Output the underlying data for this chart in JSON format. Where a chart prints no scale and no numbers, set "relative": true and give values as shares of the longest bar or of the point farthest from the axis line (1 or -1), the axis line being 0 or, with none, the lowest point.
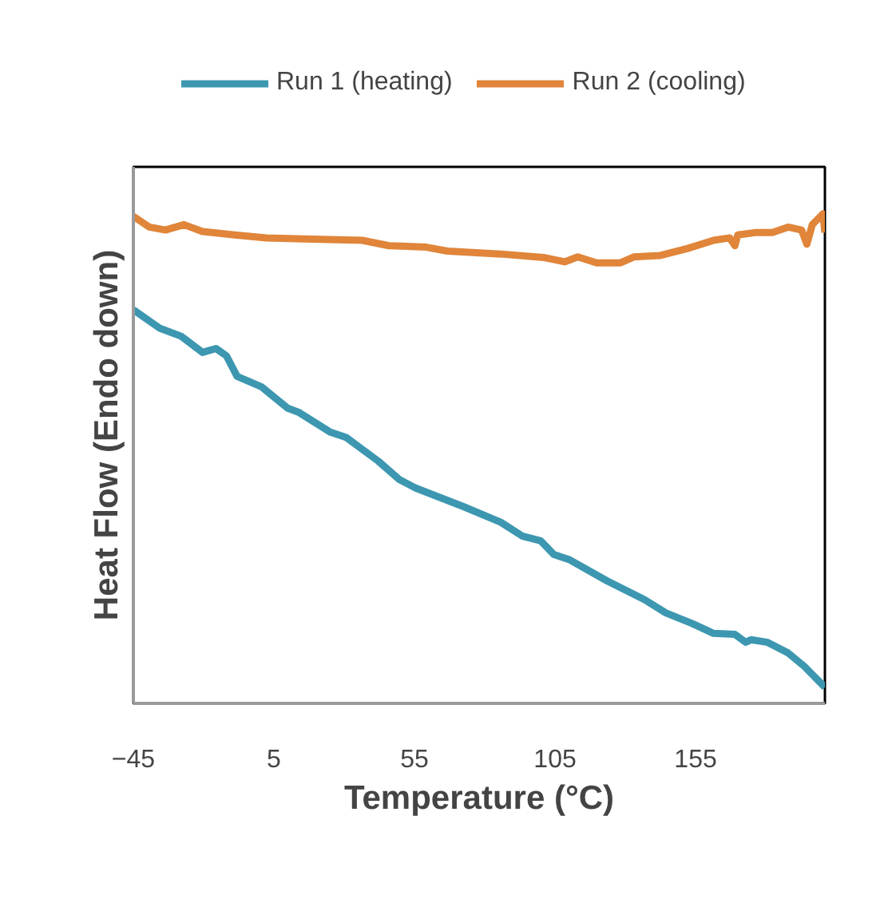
{
  "chart_data": {
    "type": "line",
    "relative": true,
    "xlabel": "Temperature (°C)",
    "ylabel": "Heat Flow (Endo down)",
    "xlim": [
      -45,
      201
    ],
    "xticks": [
      -45,
      5,
      55,
      105,
      155
    ],
    "grid": false,
    "legend": "top",
    "line_style": "solid",
    "marker": "none",
    "series": [
      {
        "name": "Run 1 (heating)",
        "color": "#3d97b0",
        "x": [
          -45,
          -35.5,
          -28.0,
          -20.4,
          -15.6,
          -11.9,
          -8.1,
          0.5,
          9.9,
          13.7,
          25.1,
          30.8,
          42.1,
          49.7,
          55.4,
          72.4,
          85.7,
          93.3,
          99.9,
          104.6,
          110.3,
          123.6,
          136.8,
          144.4,
          153.9,
          161.4,
          169.0,
          172.8,
          174.7,
          180.4,
          187.9,
          193.6,
          201
        ],
        "values": [
          0.804,
          0.766,
          0.75,
          0.717,
          0.725,
          0.71,
          0.668,
          0.647,
          0.603,
          0.595,
          0.554,
          0.543,
          0.495,
          0.457,
          0.44,
          0.402,
          0.37,
          0.342,
          0.332,
          0.304,
          0.293,
          0.25,
          0.212,
          0.185,
          0.163,
          0.143,
          0.141,
          0.125,
          0.13,
          0.125,
          0.103,
          0.076,
          0.033
        ]
      },
      {
        "name": "Run 2 (cooling)",
        "color": "#e0853a",
        "x": [
          -45,
          -39.3,
          -33.6,
          -27.0,
          -20.4,
          -9.0,
          2.3,
          15.6,
          36.4,
          45.9,
          59.2,
          66.7,
          85.7,
          100.8,
          108.4,
          113.1,
          119.8,
          128.3,
          133.0,
          142.5,
          152.0,
          161.4,
          167.1,
          169.0,
          170.0,
          176.6,
          182.3,
          187.9,
          192.7,
          194.6,
          196.5,
          200.3,
          201
        ],
        "values": [
          0.995,
          0.973,
          0.967,
          0.978,
          0.964,
          0.957,
          0.951,
          0.949,
          0.946,
          0.935,
          0.932,
          0.924,
          0.918,
          0.911,
          0.902,
          0.912,
          0.9,
          0.9,
          0.912,
          0.915,
          0.929,
          0.946,
          0.951,
          0.935,
          0.957,
          0.962,
          0.962,
          0.973,
          0.967,
          0.938,
          0.978,
          1.0,
          0.962
        ]
      }
    ]
  }
}
